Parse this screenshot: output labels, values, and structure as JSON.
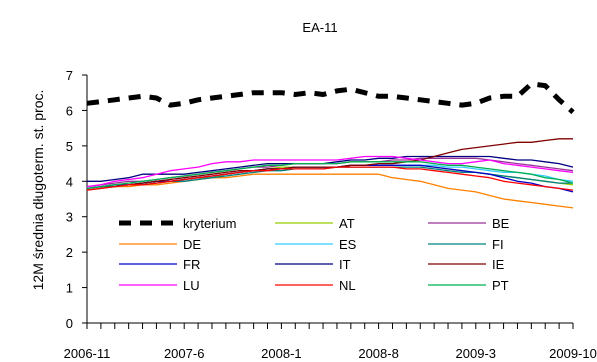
{
  "chart_data": {
    "type": "line",
    "title": "EA-11",
    "xlabel": "",
    "ylabel": "12M średnia długoterm. st. proc.",
    "ylim": [
      0,
      7
    ],
    "yticks": [
      0,
      1,
      2,
      3,
      4,
      5,
      6,
      7
    ],
    "x": [
      "2006-11",
      "2006-12",
      "2007-1",
      "2007-2",
      "2007-3",
      "2007-4",
      "2007-5",
      "2007-6",
      "2007-7",
      "2007-8",
      "2007-9",
      "2007-10",
      "2007-11",
      "2007-12",
      "2008-1",
      "2008-2",
      "2008-3",
      "2008-4",
      "2008-5",
      "2008-6",
      "2008-7",
      "2008-8",
      "2008-9",
      "2008-10",
      "2008-11",
      "2008-12",
      "2009-1",
      "2009-2",
      "2009-3",
      "2009-4",
      "2009-5",
      "2009-6",
      "2009-7",
      "2009-8",
      "2009-9",
      "2009-10"
    ],
    "xtick_labels": [
      "2006-11",
      "2007-6",
      "2008-1",
      "2008-8",
      "2009-3",
      "2009-10"
    ],
    "grid": false,
    "legend_position": "inside-lower",
    "series": [
      {
        "name": "kryterium",
        "color": "#000000",
        "style": "dashed-thick",
        "values": [
          6.2,
          6.25,
          6.3,
          6.35,
          6.4,
          6.35,
          6.15,
          6.2,
          6.3,
          6.35,
          6.4,
          6.45,
          6.5,
          6.5,
          6.5,
          6.45,
          6.5,
          6.45,
          6.55,
          6.6,
          6.5,
          6.4,
          6.4,
          6.35,
          6.3,
          6.25,
          6.2,
          6.15,
          6.2,
          6.35,
          6.4,
          6.4,
          6.75,
          6.7,
          6.3,
          5.95
        ]
      },
      {
        "name": "AT",
        "color": "#99CC00",
        "values": [
          3.8,
          3.85,
          3.9,
          3.9,
          3.95,
          4.0,
          4.0,
          4.05,
          4.1,
          4.1,
          4.2,
          4.25,
          4.3,
          4.35,
          4.4,
          4.4,
          4.4,
          4.4,
          4.4,
          4.45,
          4.45,
          4.45,
          4.45,
          4.45,
          4.45,
          4.4,
          4.35,
          4.3,
          4.25,
          4.2,
          4.15,
          4.1,
          4.05,
          4.0,
          3.95,
          3.9
        ]
      },
      {
        "name": "BE",
        "color": "#993399",
        "values": [
          3.85,
          3.9,
          3.95,
          4.0,
          4.0,
          4.05,
          4.1,
          4.15,
          4.2,
          4.25,
          4.3,
          4.35,
          4.4,
          4.4,
          4.45,
          4.5,
          4.5,
          4.5,
          4.5,
          4.55,
          4.55,
          4.55,
          4.6,
          4.6,
          4.65,
          4.65,
          4.65,
          4.65,
          4.65,
          4.6,
          4.55,
          4.5,
          4.45,
          4.4,
          4.35,
          4.3
        ]
      },
      {
        "name": "DE",
        "color": "#FF8000",
        "values": [
          3.75,
          3.8,
          3.85,
          3.85,
          3.9,
          3.9,
          3.95,
          4.0,
          4.05,
          4.1,
          4.1,
          4.15,
          4.2,
          4.2,
          4.2,
          4.2,
          4.2,
          4.2,
          4.2,
          4.2,
          4.2,
          4.2,
          4.1,
          4.05,
          4.0,
          3.9,
          3.8,
          3.75,
          3.7,
          3.6,
          3.5,
          3.45,
          3.4,
          3.35,
          3.3,
          3.25
        ]
      },
      {
        "name": "ES",
        "color": "#33CCFF",
        "values": [
          3.8,
          3.85,
          3.9,
          3.9,
          3.95,
          4.0,
          4.0,
          4.05,
          4.1,
          4.15,
          4.2,
          4.25,
          4.3,
          4.35,
          4.35,
          4.4,
          4.4,
          4.4,
          4.4,
          4.45,
          4.45,
          4.45,
          4.45,
          4.45,
          4.45,
          4.45,
          4.4,
          4.4,
          4.35,
          4.3,
          4.25,
          4.25,
          4.2,
          4.15,
          4.05,
          4.0
        ]
      },
      {
        "name": "FI",
        "color": "#008080",
        "values": [
          3.8,
          3.85,
          3.85,
          3.9,
          3.9,
          3.95,
          4.0,
          4.0,
          4.05,
          4.1,
          4.15,
          4.2,
          4.25,
          4.3,
          4.3,
          4.35,
          4.35,
          4.35,
          4.4,
          4.4,
          4.4,
          4.4,
          4.4,
          4.4,
          4.4,
          4.35,
          4.3,
          4.25,
          4.25,
          4.2,
          4.15,
          4.1,
          4.05,
          4.0,
          3.95,
          3.95
        ]
      },
      {
        "name": "FR",
        "color": "#0000CC",
        "values": [
          3.8,
          3.85,
          3.9,
          3.9,
          3.95,
          4.0,
          4.0,
          4.05,
          4.1,
          4.15,
          4.2,
          4.25,
          4.3,
          4.35,
          4.35,
          4.4,
          4.4,
          4.4,
          4.4,
          4.45,
          4.45,
          4.45,
          4.45,
          4.45,
          4.45,
          4.4,
          4.35,
          4.3,
          4.25,
          4.2,
          4.1,
          4.0,
          3.95,
          3.85,
          3.8,
          3.7
        ]
      },
      {
        "name": "IT",
        "color": "#000080",
        "values": [
          4.0,
          4.0,
          4.05,
          4.1,
          4.2,
          4.2,
          4.2,
          4.2,
          4.25,
          4.3,
          4.35,
          4.4,
          4.45,
          4.5,
          4.5,
          4.5,
          4.5,
          4.5,
          4.55,
          4.6,
          4.6,
          4.65,
          4.65,
          4.7,
          4.7,
          4.7,
          4.7,
          4.7,
          4.7,
          4.7,
          4.65,
          4.6,
          4.6,
          4.55,
          4.5,
          4.4
        ]
      },
      {
        "name": "IE",
        "color": "#800000",
        "values": [
          3.75,
          3.8,
          3.85,
          3.9,
          3.95,
          4.0,
          4.05,
          4.1,
          4.15,
          4.2,
          4.25,
          4.3,
          4.3,
          4.35,
          4.35,
          4.4,
          4.4,
          4.4,
          4.4,
          4.45,
          4.45,
          4.5,
          4.5,
          4.55,
          4.6,
          4.7,
          4.8,
          4.9,
          4.95,
          5.0,
          5.05,
          5.1,
          5.1,
          5.15,
          5.2,
          5.2
        ]
      },
      {
        "name": "LU",
        "color": "#FF00FF",
        "values": [
          3.85,
          3.9,
          4.0,
          4.05,
          4.1,
          4.2,
          4.3,
          4.35,
          4.4,
          4.5,
          4.55,
          4.55,
          4.6,
          4.6,
          4.6,
          4.6,
          4.6,
          4.6,
          4.6,
          4.65,
          4.7,
          4.7,
          4.7,
          4.65,
          4.6,
          4.55,
          4.5,
          4.5,
          4.55,
          4.6,
          4.5,
          4.45,
          4.4,
          4.35,
          4.3,
          4.25
        ]
      },
      {
        "name": "NL",
        "color": "#FF0000",
        "values": [
          3.75,
          3.8,
          3.85,
          3.9,
          3.9,
          3.95,
          4.0,
          4.05,
          4.1,
          4.15,
          4.2,
          4.25,
          4.3,
          4.3,
          4.35,
          4.35,
          4.35,
          4.35,
          4.4,
          4.4,
          4.4,
          4.4,
          4.4,
          4.35,
          4.35,
          4.3,
          4.25,
          4.2,
          4.15,
          4.1,
          4.0,
          3.95,
          3.9,
          3.85,
          3.8,
          3.75
        ]
      },
      {
        "name": "PT",
        "color": "#00B050",
        "values": [
          3.8,
          3.85,
          3.9,
          3.95,
          4.0,
          4.05,
          4.1,
          4.15,
          4.2,
          4.25,
          4.3,
          4.35,
          4.4,
          4.45,
          4.45,
          4.5,
          4.5,
          4.5,
          4.5,
          4.55,
          4.55,
          4.55,
          4.55,
          4.55,
          4.55,
          4.5,
          4.45,
          4.45,
          4.4,
          4.35,
          4.3,
          4.25,
          4.2,
          4.1,
          4.05,
          3.95
        ]
      }
    ]
  }
}
